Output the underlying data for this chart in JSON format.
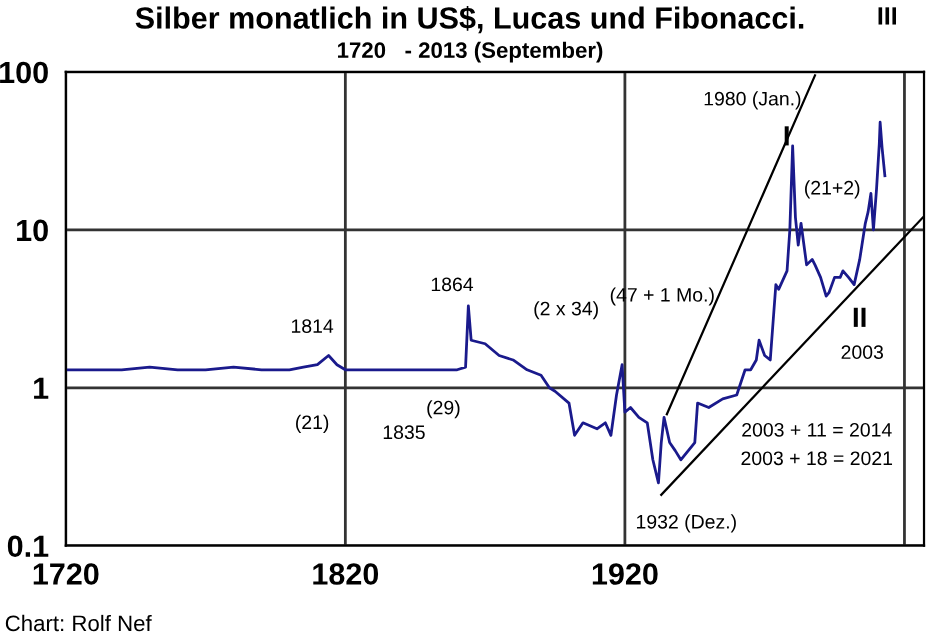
{
  "chart_data": {
    "type": "line",
    "title": "Silber monatlich in US$, Lucas und Fibonacci.",
    "subtitle": "1720   - 2013 (September)",
    "log": "y",
    "grid": true,
    "legend": false,
    "xlim": [
      1720,
      2027
    ],
    "xticks": [
      1720,
      1820,
      1920,
      {
        "value": 2020,
        "label": null
      }
    ],
    "ylim": [
      0.1,
      100
    ],
    "yticks": [
      {
        "value": 0.1,
        "label": "0.1"
      },
      1,
      10,
      100
    ],
    "series": [
      {
        "color": "#1a1a8c",
        "x": [
          1720,
          1730,
          1740,
          1750,
          1760,
          1770,
          1780,
          1790,
          1800,
          1805,
          1810,
          1814,
          1817,
          1820,
          1830,
          1840,
          1850,
          1860,
          1863,
          1864,
          1865,
          1870,
          1875,
          1880,
          1885,
          1890,
          1893,
          1895,
          1900,
          1902,
          1905,
          1910,
          1913,
          1915,
          1917,
          1919,
          1920,
          1922,
          1925,
          1928,
          1930,
          1932,
          1933,
          1934,
          1936,
          1938,
          1940,
          1945,
          1946,
          1950,
          1955,
          1960,
          1963,
          1965,
          1967,
          1968,
          1970,
          1972,
          1973,
          1974,
          1975,
          1978,
          1979,
          1980,
          1981,
          1982,
          1983,
          1985,
          1987,
          1988,
          1990,
          1992,
          1993,
          1995,
          1997,
          1998,
          2000,
          2002,
          2004,
          2006,
          2007,
          2008,
          2008.9,
          2010,
          2011,
          2011.3,
          2012,
          2013
        ],
        "values": [
          1.3,
          1.3,
          1.3,
          1.35,
          1.3,
          1.3,
          1.35,
          1.3,
          1.3,
          1.35,
          1.4,
          1.6,
          1.4,
          1.3,
          1.3,
          1.3,
          1.3,
          1.3,
          1.35,
          3.3,
          2.0,
          1.9,
          1.6,
          1.5,
          1.3,
          1.2,
          1.0,
          0.95,
          0.8,
          0.5,
          0.6,
          0.55,
          0.6,
          0.5,
          0.9,
          1.4,
          0.7,
          0.75,
          0.65,
          0.6,
          0.35,
          0.25,
          0.45,
          0.65,
          0.45,
          0.4,
          0.35,
          0.45,
          0.8,
          0.75,
          0.85,
          0.9,
          1.3,
          1.3,
          1.5,
          2.0,
          1.6,
          1.5,
          2.6,
          4.5,
          4.2,
          5.5,
          10,
          34,
          12,
          8,
          11,
          6,
          6.5,
          6,
          5,
          3.8,
          4,
          5,
          5,
          5.5,
          5,
          4.5,
          6.5,
          11,
          13,
          17,
          10,
          18,
          35,
          48,
          33,
          22
        ]
      },
      {
        "type": "line",
        "color": "#000000",
        "x": [
          1935,
          1988
        ],
        "values": [
          0.68,
          95
        ]
      },
      {
        "type": "line",
        "color": "#000000",
        "x": [
          1933,
          2027
        ],
        "values": [
          0.21,
          12.2
        ]
      }
    ],
    "annotations": [
      "1814",
      "(21)",
      "(29)",
      "1835",
      "1864",
      "(2 x 34)",
      "(47 + 1 Mo.)",
      "1980 (Jan.)",
      "I",
      "(21+2)",
      "II",
      "2003",
      "2003 + 11 = 2014",
      "2003 + 18 = 2021",
      "1932 (Dez.)",
      "III",
      "Chart: Rolf Nef"
    ]
  }
}
